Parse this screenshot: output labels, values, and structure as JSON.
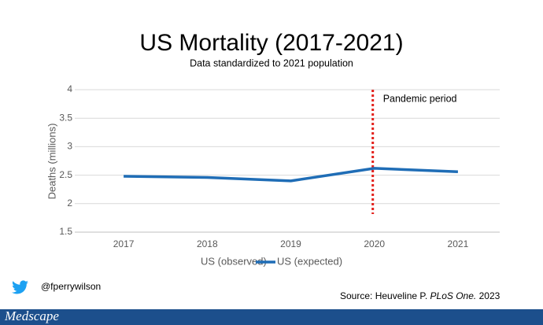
{
  "chart_data": {
    "type": "line",
    "title": "US Mortality (2017-2021)",
    "subtitle": "Data standardized to 2021 population",
    "y_label": "Deaths (millions)",
    "categories": [
      "2017",
      "2018",
      "2019",
      "2020",
      "2021"
    ],
    "series": [
      {
        "name": "US (observed)",
        "color": "none",
        "values": [
          null,
          null,
          null,
          null,
          null
        ]
      },
      {
        "name": "US (expected)",
        "color": "#1f6db6",
        "values": [
          2.48,
          2.46,
          2.4,
          2.62,
          2.56
        ]
      }
    ],
    "ylim": [
      1.5,
      4
    ],
    "yticks": [
      1.5,
      2,
      2.5,
      3,
      3.5,
      4
    ],
    "grid": true,
    "legend": "bottom",
    "vline": {
      "category": "2020",
      "label": "Pandemic period",
      "color": "#e3211c"
    }
  },
  "handle": "@fperrywilson",
  "source": {
    "prefix": "Source: Heuveline P.",
    "journal": "PLoS One.",
    "year": "2023"
  },
  "brand": "Medscape"
}
